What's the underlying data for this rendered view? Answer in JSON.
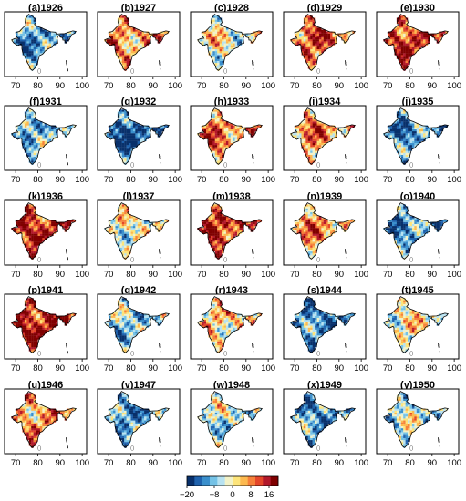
{
  "figure": {
    "panels": [
      {
        "title": "(a)1926",
        "tone": -0.55
      },
      {
        "title": "(b)1927",
        "tone": 0.35
      },
      {
        "title": "(c)1928",
        "tone": 0.0
      },
      {
        "title": "(d)1929",
        "tone": 0.55
      },
      {
        "title": "(e)1930",
        "tone": 0.7
      },
      {
        "title": "(f)1931",
        "tone": -0.45
      },
      {
        "title": "(g)1932",
        "tone": -0.8
      },
      {
        "title": "(h)1933",
        "tone": 0.45
      },
      {
        "title": "(i)1934",
        "tone": 0.4
      },
      {
        "title": "(j)1935",
        "tone": -0.6
      },
      {
        "title": "(k)1936",
        "tone": 0.75
      },
      {
        "title": "(l)1937",
        "tone": -0.05
      },
      {
        "title": "(m)1938",
        "tone": 0.7
      },
      {
        "title": "(n)1939",
        "tone": 0.35
      },
      {
        "title": "(o)1940",
        "tone": -0.55
      },
      {
        "title": "(p)1941",
        "tone": 0.8
      },
      {
        "title": "(q)1942",
        "tone": -0.35
      },
      {
        "title": "(r)1943",
        "tone": 0.15
      },
      {
        "title": "(s)1944",
        "tone": -0.6
      },
      {
        "title": "(t)1945",
        "tone": 0.0
      },
      {
        "title": "(u)1946",
        "tone": 0.35
      },
      {
        "title": "(v)1947",
        "tone": -0.55
      },
      {
        "title": "(w)1948",
        "tone": -0.2
      },
      {
        "title": "(x)1949",
        "tone": -0.55
      },
      {
        "title": "(y)1950",
        "tone": -0.2
      }
    ],
    "x_ticks": [
      "70",
      "80",
      "90",
      "100"
    ]
  },
  "colorbar": {
    "ticks": [
      {
        "label": "−20",
        "value": -20
      },
      {
        "label": "−8",
        "value": -8
      },
      {
        "label": "0",
        "value": 0
      },
      {
        "label": "8",
        "value": 8
      },
      {
        "label": "16",
        "value": 16
      }
    ],
    "range": [
      -20,
      20
    ],
    "colors": [
      "#08306b",
      "#1f62ad",
      "#3a8fcc",
      "#74c2e6",
      "#b7e2f1",
      "#f2f2c8",
      "#fde47a",
      "#fdb94f",
      "#f6813a",
      "#e4472a",
      "#b2182b",
      "#7f0000"
    ]
  }
}
